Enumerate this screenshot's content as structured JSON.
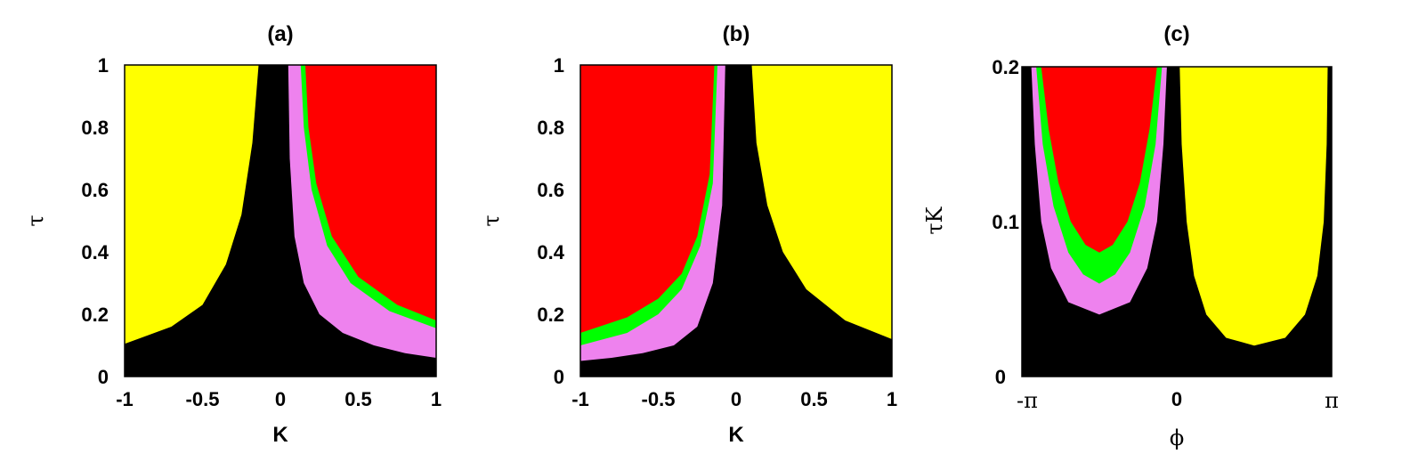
{
  "colors": {
    "yellow": "#ffff00",
    "red": "#ff0000",
    "green": "#00ff00",
    "violet": "#ee82ee",
    "black": "#000000"
  },
  "chart_data": [
    {
      "type": "heatmap",
      "title": "(a)",
      "xlabel": "K",
      "ylabel": "τ",
      "xlim": [
        -1,
        1
      ],
      "ylim": [
        0,
        1
      ],
      "xticks": [
        "-1",
        "-0.5",
        "0",
        "0.5",
        "1"
      ],
      "yticks": [
        "0",
        "0.2",
        "0.4",
        "0.6",
        "0.8",
        "1"
      ],
      "grid": false,
      "regions": [
        {
          "color": "yellow",
          "side": "left",
          "boundary": [
            [
              -1,
              0.105
            ],
            [
              -0.7,
              0.16
            ],
            [
              -0.5,
              0.23
            ],
            [
              -0.35,
              0.36
            ],
            [
              -0.25,
              0.52
            ],
            [
              -0.18,
              0.75
            ],
            [
              -0.14,
              1.0
            ]
          ]
        },
        {
          "color": "violet",
          "side": "right",
          "boundary": [
            [
              0.05,
              1.0
            ],
            [
              0.06,
              0.7
            ],
            [
              0.09,
              0.45
            ],
            [
              0.15,
              0.3
            ],
            [
              0.25,
              0.2
            ],
            [
              0.4,
              0.14
            ],
            [
              0.6,
              0.1
            ],
            [
              0.8,
              0.075
            ],
            [
              1,
              0.06
            ]
          ]
        },
        {
          "color": "green",
          "side": "right",
          "boundary": [
            [
              0.13,
              1.0
            ],
            [
              0.15,
              0.8
            ],
            [
              0.2,
              0.6
            ],
            [
              0.3,
              0.42
            ],
            [
              0.45,
              0.3
            ],
            [
              0.7,
              0.21
            ],
            [
              1,
              0.155
            ]
          ]
        },
        {
          "color": "red",
          "side": "right",
          "boundary": [
            [
              0.16,
              1.0
            ],
            [
              0.18,
              0.8
            ],
            [
              0.23,
              0.62
            ],
            [
              0.33,
              0.45
            ],
            [
              0.5,
              0.32
            ],
            [
              0.75,
              0.23
            ],
            [
              1,
              0.18
            ]
          ]
        }
      ]
    },
    {
      "type": "heatmap",
      "title": "(b)",
      "xlabel": "K",
      "ylabel": "τ",
      "xlim": [
        -1,
        1
      ],
      "ylim": [
        0,
        1
      ],
      "xticks": [
        "-1",
        "-0.5",
        "0",
        "0.5",
        "1"
      ],
      "yticks": [
        "0",
        "0.2",
        "0.4",
        "0.6",
        "0.8",
        "1"
      ],
      "grid": false,
      "regions": [
        {
          "color": "yellow",
          "side": "right",
          "boundary": [
            [
              0.1,
              1.0
            ],
            [
              0.13,
              0.75
            ],
            [
              0.2,
              0.55
            ],
            [
              0.3,
              0.4
            ],
            [
              0.45,
              0.28
            ],
            [
              0.7,
              0.18
            ],
            [
              1,
              0.12
            ]
          ]
        },
        {
          "color": "violet",
          "side": "left",
          "boundary": [
            [
              -1,
              0.05
            ],
            [
              -0.8,
              0.06
            ],
            [
              -0.6,
              0.075
            ],
            [
              -0.4,
              0.1
            ],
            [
              -0.25,
              0.16
            ],
            [
              -0.15,
              0.3
            ],
            [
              -0.09,
              0.55
            ],
            [
              -0.07,
              1.0
            ]
          ]
        },
        {
          "color": "green",
          "side": "left",
          "boundary": [
            [
              -1,
              0.1
            ],
            [
              -0.7,
              0.14
            ],
            [
              -0.5,
              0.2
            ],
            [
              -0.35,
              0.28
            ],
            [
              -0.23,
              0.42
            ],
            [
              -0.15,
              0.62
            ],
            [
              -0.12,
              1.0
            ]
          ]
        },
        {
          "color": "red",
          "side": "left",
          "boundary": [
            [
              -1,
              0.14
            ],
            [
              -0.7,
              0.19
            ],
            [
              -0.5,
              0.25
            ],
            [
              -0.35,
              0.33
            ],
            [
              -0.25,
              0.45
            ],
            [
              -0.17,
              0.65
            ],
            [
              -0.14,
              1.0
            ]
          ]
        }
      ]
    },
    {
      "type": "heatmap",
      "title": "(c)",
      "xlabel": "ϕ",
      "ylabel": "τK",
      "xlim": [
        -3.14159,
        3.14159
      ],
      "ylim": [
        0,
        0.2
      ],
      "xticks": [
        "-π",
        "0",
        "π"
      ],
      "yticks": [
        "0",
        "0.1",
        "0.2"
      ],
      "grid": false,
      "regions": [
        {
          "color": "yellow",
          "side": "cup",
          "boundary": [
            [
              0.06,
              0.2
            ],
            [
              0.1,
              0.15
            ],
            [
              0.2,
              0.1
            ],
            [
              0.35,
              0.065
            ],
            [
              0.6,
              0.04
            ],
            [
              1.0,
              0.025
            ],
            [
              1.57,
              0.02
            ],
            [
              2.2,
              0.025
            ],
            [
              2.6,
              0.04
            ],
            [
              2.85,
              0.065
            ],
            [
              2.98,
              0.1
            ],
            [
              3.04,
              0.15
            ],
            [
              3.06,
              0.2
            ]
          ]
        },
        {
          "color": "violet",
          "side": "cup",
          "boundary": [
            [
              -2.95,
              0.2
            ],
            [
              -2.88,
              0.15
            ],
            [
              -2.75,
              0.1
            ],
            [
              -2.55,
              0.07
            ],
            [
              -2.2,
              0.048
            ],
            [
              -1.57,
              0.04
            ],
            [
              -0.95,
              0.048
            ],
            [
              -0.6,
              0.07
            ],
            [
              -0.4,
              0.1
            ],
            [
              -0.27,
              0.15
            ],
            [
              -0.2,
              0.2
            ]
          ]
        },
        {
          "color": "green",
          "side": "cup",
          "boundary": [
            [
              -2.85,
              0.2
            ],
            [
              -2.72,
              0.15
            ],
            [
              -2.5,
              0.11
            ],
            [
              -2.2,
              0.08
            ],
            [
              -1.9,
              0.066
            ],
            [
              -1.57,
              0.06
            ],
            [
              -1.25,
              0.066
            ],
            [
              -0.95,
              0.08
            ],
            [
              -0.65,
              0.11
            ],
            [
              -0.43,
              0.15
            ],
            [
              -0.3,
              0.2
            ]
          ]
        },
        {
          "color": "red",
          "side": "cup",
          "boundary": [
            [
              -2.75,
              0.2
            ],
            [
              -2.6,
              0.16
            ],
            [
              -2.4,
              0.125
            ],
            [
              -2.15,
              0.1
            ],
            [
              -1.85,
              0.085
            ],
            [
              -1.57,
              0.08
            ],
            [
              -1.3,
              0.085
            ],
            [
              -1.0,
              0.1
            ],
            [
              -0.75,
              0.125
            ],
            [
              -0.55,
              0.16
            ],
            [
              -0.4,
              0.2
            ]
          ]
        }
      ]
    }
  ]
}
